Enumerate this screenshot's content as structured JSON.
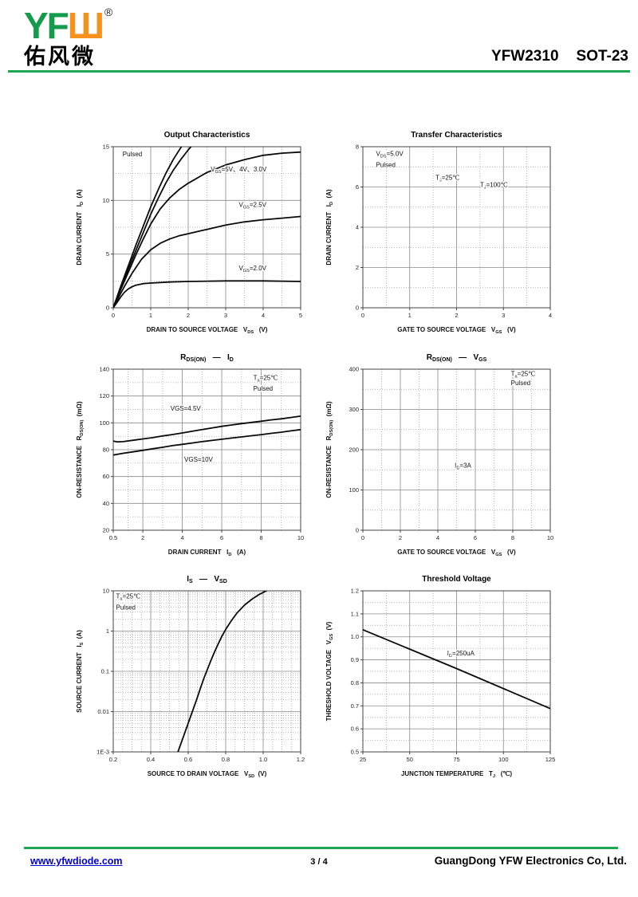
{
  "header": {
    "logo_latin_green": "YF",
    "logo_latin_orange": "Ш",
    "registered": "®",
    "logo_cn": "佑风微",
    "part_number": "YFW2310",
    "package": "SOT-23"
  },
  "footer": {
    "website": "www.yfwdiode.com",
    "page": "3 / 4",
    "company": "GuangDong YFW Electronics Co, Ltd."
  },
  "colors": {
    "brand_green": "#1FA854",
    "logo_green": "#169B4E",
    "logo_orange": "#F5921E",
    "link_blue": "#0000D6",
    "curve_black": "#0a0a0a"
  },
  "chart_data": [
    {
      "name": "output-characteristics",
      "type": "line",
      "title": "Output Characteristics",
      "xlabel": "DRAIN TO SOURCE VOLTAGE   V~DS~   (V)",
      "ylabel": "DRAIN CURRENT   I~D~  (A)",
      "xlim": [
        0,
        5
      ],
      "ylim": [
        0,
        15
      ],
      "xticks": [
        0,
        1,
        2,
        3,
        4,
        5
      ],
      "xminor": [
        0.5,
        1.5,
        2.5,
        3.5,
        4.5
      ],
      "yticks": [
        0,
        5,
        10,
        15
      ],
      "yminor": [
        2.5,
        7.5,
        12.5
      ],
      "grid": true,
      "legend": "inline-annotations",
      "series": [
        {
          "name": "VGS=5V",
          "points": [
            [
              0,
              0
            ],
            [
              0.2,
              2.0
            ],
            [
              0.4,
              3.9
            ],
            [
              0.6,
              5.8
            ],
            [
              0.8,
              7.6
            ],
            [
              1,
              9.4
            ],
            [
              1.2,
              11.0
            ],
            [
              1.4,
              12.5
            ],
            [
              1.6,
              13.8
            ],
            [
              1.8,
              14.9
            ],
            [
              1.95,
              15.6
            ]
          ]
        },
        {
          "name": "VGS=4V",
          "points": [
            [
              0,
              0
            ],
            [
              0.2,
              1.85
            ],
            [
              0.4,
              3.6
            ],
            [
              0.6,
              5.3
            ],
            [
              0.8,
              7.0
            ],
            [
              1,
              8.7
            ],
            [
              1.2,
              10.2
            ],
            [
              1.4,
              11.6
            ],
            [
              1.6,
              12.8
            ],
            [
              1.8,
              13.8
            ],
            [
              2,
              14.7
            ],
            [
              2.2,
              15.5
            ]
          ]
        },
        {
          "name": "VGS=3.0V",
          "points": [
            [
              0,
              0
            ],
            [
              0.2,
              1.7
            ],
            [
              0.4,
              3.3
            ],
            [
              0.6,
              4.9
            ],
            [
              0.8,
              6.4
            ],
            [
              1,
              7.8
            ],
            [
              1.25,
              9.2
            ],
            [
              1.5,
              10.2
            ],
            [
              1.75,
              11.0
            ],
            [
              2,
              11.6
            ],
            [
              2.5,
              12.6
            ],
            [
              3,
              13.3
            ],
            [
              3.5,
              13.8
            ],
            [
              4,
              14.2
            ],
            [
              4.5,
              14.4
            ],
            [
              5,
              14.5
            ]
          ]
        },
        {
          "name": "VGS=2.5V",
          "points": [
            [
              0,
              0
            ],
            [
              0.15,
              1.0
            ],
            [
              0.3,
              2.0
            ],
            [
              0.5,
              3.2
            ],
            [
              0.75,
              4.5
            ],
            [
              1,
              5.4
            ],
            [
              1.25,
              6.0
            ],
            [
              1.5,
              6.4
            ],
            [
              1.75,
              6.7
            ],
            [
              2,
              6.9
            ],
            [
              2.5,
              7.3
            ],
            [
              3,
              7.7
            ],
            [
              3.5,
              8.0
            ],
            [
              4,
              8.2
            ],
            [
              4.5,
              8.35
            ],
            [
              5,
              8.5
            ]
          ]
        },
        {
          "name": "VGS=2.0V",
          "points": [
            [
              0,
              0
            ],
            [
              0.1,
              0.5
            ],
            [
              0.2,
              1.0
            ],
            [
              0.3,
              1.45
            ],
            [
              0.4,
              1.75
            ],
            [
              0.5,
              1.95
            ],
            [
              0.6,
              2.1
            ],
            [
              0.8,
              2.25
            ],
            [
              1,
              2.3
            ],
            [
              1.5,
              2.4
            ],
            [
              2,
              2.45
            ],
            [
              3,
              2.5
            ],
            [
              4,
              2.5
            ],
            [
              5,
              2.45
            ]
          ]
        }
      ],
      "annotations": [
        {
          "x": 0.25,
          "y": 14.1,
          "text": "Pulsed"
        },
        {
          "x": 2.6,
          "y": 12.7,
          "text": "V~GS~=5V、4V、3.0V"
        },
        {
          "x": 3.35,
          "y": 9.4,
          "text": "V~GS~=2.5V"
        },
        {
          "x": 3.35,
          "y": 3.5,
          "text": "V~GS~=2.0V"
        }
      ]
    },
    {
      "name": "transfer-characteristics",
      "type": "line",
      "title": "Transfer Characteristics",
      "xlabel": "GATE TO SOURCE VOLTAGE   V~GS~   (V)",
      "ylabel": "DRAIN CURRENT   I~D~  (A)",
      "xlim": [
        0,
        4
      ],
      "ylim": [
        0,
        8
      ],
      "xticks": [
        0,
        1,
        2,
        3,
        4
      ],
      "xminor": [
        0.5,
        1.5,
        2.5,
        3.5
      ],
      "yticks": [
        0,
        2,
        4,
        6,
        8
      ],
      "yminor": [
        1,
        3,
        5,
        7
      ],
      "grid": true,
      "series": [],
      "annotations": [
        {
          "x": 0.28,
          "y": 7.55,
          "text": "V~DS~=5.0V"
        },
        {
          "x": 0.28,
          "y": 7.0,
          "text": "Pulsed"
        },
        {
          "x": 1.55,
          "y": 6.35,
          "text": "T~J~=25℃"
        },
        {
          "x": 2.5,
          "y": 6.0,
          "text": "T~J~=100℃"
        }
      ]
    },
    {
      "name": "rdson-vs-id",
      "type": "line",
      "title": "R~DS(ON)~   —   I~D~",
      "xlabel": "DRAIN CURRENT   I~D~   (A)",
      "ylabel": "ON-RESISTANCE   R~DS(ON)~  (mΩ)",
      "xlim": [
        0.5,
        10
      ],
      "ylim": [
        20,
        140
      ],
      "xticks": [
        0.5,
        2,
        4,
        6,
        8,
        10
      ],
      "xtick_labels": [
        "0.5",
        "2",
        "4",
        "6",
        "8",
        "10"
      ],
      "xminor": [
        1.25,
        3,
        5,
        7,
        9
      ],
      "yticks": [
        20,
        40,
        60,
        80,
        100,
        120,
        140
      ],
      "yminor": [
        30,
        50,
        70,
        90,
        110,
        130
      ],
      "grid": true,
      "series": [
        {
          "name": "VGS=4.5V",
          "points": [
            [
              0.5,
              86.5
            ],
            [
              0.7,
              85.8
            ],
            [
              1,
              86
            ],
            [
              1.5,
              87
            ],
            [
              2,
              88
            ],
            [
              2.5,
              89
            ],
            [
              3,
              90.2
            ],
            [
              3.5,
              91.3
            ],
            [
              4,
              92.5
            ],
            [
              4.5,
              93.7
            ],
            [
              5,
              95
            ],
            [
              5.5,
              96.2
            ],
            [
              6,
              97.4
            ],
            [
              6.5,
              98.4
            ],
            [
              7,
              99.4
            ],
            [
              7.5,
              100.3
            ],
            [
              8,
              101.2
            ],
            [
              8.5,
              102.2
            ],
            [
              9,
              103
            ],
            [
              9.5,
              104
            ],
            [
              10,
              105
            ]
          ]
        },
        {
          "name": "VGS=10V",
          "points": [
            [
              0.5,
              76
            ],
            [
              1,
              77.3
            ],
            [
              1.5,
              78.4
            ],
            [
              2,
              79.5
            ],
            [
              2.5,
              80.7
            ],
            [
              3,
              81.8
            ],
            [
              3.5,
              83
            ],
            [
              4,
              84
            ],
            [
              4.5,
              85
            ],
            [
              5,
              86
            ],
            [
              5.5,
              86.9
            ],
            [
              6,
              87.8
            ],
            [
              6.5,
              88.7
            ],
            [
              7,
              89.5
            ],
            [
              7.5,
              90.4
            ],
            [
              8,
              91.2
            ],
            [
              8.5,
              92.2
            ],
            [
              9,
              93
            ],
            [
              9.5,
              94
            ],
            [
              10,
              95
            ]
          ]
        }
      ],
      "annotations": [
        {
          "x": 7.6,
          "y": 132,
          "text": "T~a~=25℃"
        },
        {
          "x": 7.6,
          "y": 124,
          "text": "Pulsed"
        },
        {
          "x": 3.4,
          "y": 109,
          "text": "VGS=4.5V"
        },
        {
          "x": 4.1,
          "y": 71,
          "text": "VGS=10V"
        }
      ]
    },
    {
      "name": "rdson-vs-vgs",
      "type": "line",
      "title": "R~DS(ON)~   —   V~GS~",
      "xlabel": "GATE TO SOURCE VOLTAGE   V~GS~   (V)",
      "ylabel": "ON-RESISTANCE   R~DS(ON)~  (mΩ)",
      "xlim": [
        0,
        10
      ],
      "ylim": [
        0,
        400
      ],
      "xticks": [
        0,
        2,
        4,
        6,
        8,
        10
      ],
      "xminor": [
        1,
        3,
        5,
        7,
        9
      ],
      "yticks": [
        0,
        100,
        200,
        300,
        400
      ],
      "yminor": [
        50,
        150,
        250,
        350
      ],
      "grid": true,
      "series": [],
      "annotations": [
        {
          "x": 7.9,
          "y": 383,
          "text": "T~a~=25℃"
        },
        {
          "x": 7.9,
          "y": 360,
          "text": "Pulsed"
        },
        {
          "x": 4.9,
          "y": 155,
          "text": "I~D~=3A"
        }
      ]
    },
    {
      "name": "is-vs-vsd",
      "type": "line",
      "title": "I~S~   —   V~SD~",
      "xlabel": "SOURCE TO DRAIN VOLTAGE   V~SD~  (V)",
      "ylabel": "SOURCE CURRENT   I~S~  (A)",
      "xlim": [
        0.2,
        1.2
      ],
      "ylim": [
        0.001,
        10
      ],
      "ylog": true,
      "xticks": [
        0.2,
        0.4,
        0.6,
        0.8,
        1.0,
        1.2
      ],
      "xtick_labels": [
        "0.2",
        "0.4",
        "0.6",
        "0.8",
        "1.0",
        "1.2"
      ],
      "xminor": [
        0.25,
        0.3,
        0.35,
        0.45,
        0.5,
        0.55,
        0.65,
        0.7,
        0.75,
        0.85,
        0.9,
        0.95,
        1.05,
        1.1,
        1.15
      ],
      "yticks": [
        0.001,
        0.01,
        0.1,
        1,
        10
      ],
      "ytick_labels": [
        "1E-3",
        "0.01",
        "0.1",
        "1",
        "10"
      ],
      "grid": true,
      "series": [
        {
          "name": "body-diode",
          "points": [
            [
              0.545,
              0.001
            ],
            [
              0.565,
              0.0018
            ],
            [
              0.585,
              0.0033
            ],
            [
              0.605,
              0.006
            ],
            [
              0.625,
              0.011
            ],
            [
              0.645,
              0.02
            ],
            [
              0.665,
              0.038
            ],
            [
              0.685,
              0.07
            ],
            [
              0.7,
              0.105
            ],
            [
              0.72,
              0.18
            ],
            [
              0.74,
              0.3
            ],
            [
              0.76,
              0.48
            ],
            [
              0.78,
              0.75
            ],
            [
              0.8,
              1.1
            ],
            [
              0.83,
              1.8
            ],
            [
              0.86,
              2.8
            ],
            [
              0.9,
              4.4
            ],
            [
              0.94,
              6.2
            ],
            [
              0.98,
              8.2
            ],
            [
              1.02,
              10.2
            ]
          ]
        }
      ],
      "annotations": [
        {
          "x": 0.215,
          "y": 6.5,
          "text": "T~a~=25℃"
        },
        {
          "x": 0.215,
          "y": 3.4,
          "text": "Pulsed"
        }
      ]
    },
    {
      "name": "threshold-voltage",
      "type": "line",
      "title": "Threshold Voltage",
      "xlabel": "JUNCTION TEMPERATURE   T~J~   (℃)",
      "ylabel": "THRESHOLD VOLTAGE   V~GS~  (V)",
      "xlim": [
        25,
        125
      ],
      "ylim": [
        0.5,
        1.2
      ],
      "xticks": [
        25,
        50,
        75,
        100,
        125
      ],
      "xminor": [
        37.5,
        62.5,
        87.5,
        112.5
      ],
      "yticks": [
        0.5,
        0.6,
        0.7,
        0.8,
        0.9,
        1.0,
        1.1,
        1.2
      ],
      "ytick_labels": [
        "0.5",
        "0.6",
        "0.7",
        "0.8",
        "0.9",
        "1.0",
        "1.1",
        "1.2"
      ],
      "yminor": [
        0.55,
        0.65,
        0.75,
        0.85,
        0.95,
        1.05,
        1.15
      ],
      "grid": true,
      "series": [
        {
          "name": "ID=250uA",
          "points": [
            [
              25,
              1.031
            ],
            [
              75,
              0.862
            ],
            [
              125,
              0.688
            ]
          ]
        }
      ],
      "annotations": [
        {
          "x": 70,
          "y": 0.92,
          "text": "I~D~=250uA"
        }
      ]
    }
  ]
}
